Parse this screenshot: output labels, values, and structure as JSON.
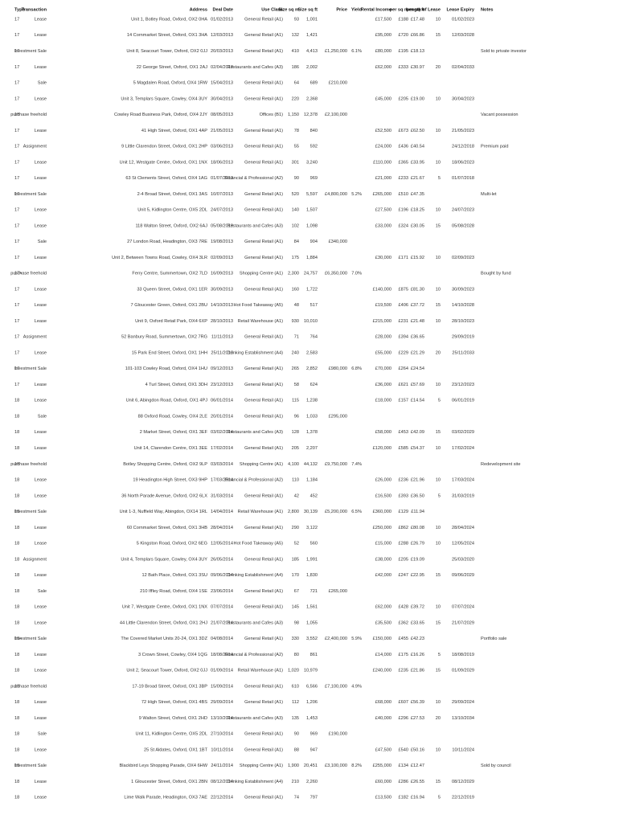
{
  "table": {
    "header": [
      "Type",
      "Transaction",
      "Address",
      "Deal Date",
      "Use Class",
      "Size sq m",
      "Size sq ft",
      "Price",
      "Yield",
      "Rental Income",
      "per sq m",
      "per sq ft",
      "Length of Lease",
      "Lease Expiry",
      "Notes"
    ],
    "rows": [
      [
        "17",
        "Lease",
        "Unit 1, Botley Road, Oxford, OX2 0HA",
        "01/02/2013",
        "General Retail (A1)",
        "93",
        "1,001",
        null,
        null,
        "£17,500",
        "£188",
        "£17.48",
        "10",
        "01/02/2023",
        null
      ],
      [
        "17",
        "Lease",
        "14 Cornmarket Street, Oxford, OX1 3HA",
        "12/03/2013",
        "General Retail (A1)",
        "132",
        "1,421",
        null,
        null,
        "£95,000",
        "£720",
        "£66.86",
        "15",
        "12/03/2028",
        null
      ],
      [
        "17",
        "Investment Sale",
        "Unit 8, Seacourt Tower, Oxford, OX2 0JJ",
        "20/03/2013",
        "General Retail (A1)",
        "410",
        "4,413",
        "£1,250,000",
        "6.1%",
        "£80,000",
        "£195",
        "£18.13",
        null,
        null,
        "Sold to private investor"
      ],
      [
        "17",
        "Lease",
        "22 George Street, Oxford, OX1 2AJ",
        "02/04/2013",
        "Restaurants and Cafes (A3)",
        "186",
        "2,002",
        null,
        null,
        "£62,000",
        "£333",
        "£30.97",
        "20",
        "02/04/2033",
        null
      ],
      [
        "17",
        "Sale",
        "5 Magdalen Road, Oxford, OX4 1RW",
        "15/04/2013",
        "General Retail (A1)",
        "64",
        "689",
        "£210,000",
        null,
        null,
        null,
        null,
        null,
        null,
        null
      ],
      [
        "17",
        "Lease",
        "Unit 3, Templars Square, Cowley, OX4 3UY",
        "30/04/2013",
        "General Retail (A1)",
        "220",
        "2,368",
        null,
        null,
        "£45,000",
        "£205",
        "£19.00",
        "10",
        "30/04/2023",
        null
      ],
      [
        "18",
        "purchase freehold",
        "Cowley Road Business Park, Oxford, OX4 2JY",
        "08/05/2013",
        "Offices (B1)",
        "1,150",
        "12,378",
        "£2,100,000",
        null,
        null,
        null,
        null,
        null,
        null,
        "Vacant possession"
      ],
      [
        "17",
        "Lease",
        "41 High Street, Oxford, OX1 4AP",
        "21/05/2013",
        "General Retail (A1)",
        "78",
        "840",
        null,
        null,
        "£52,500",
        "£673",
        "£62.50",
        "10",
        "21/05/2023",
        null
      ],
      [
        "17",
        "Assignment",
        "9 Little Clarendon Street, Oxford, OX1 2HP",
        "03/06/2013",
        "General Retail (A1)",
        "55",
        "592",
        null,
        null,
        "£24,000",
        "£436",
        "£40.54",
        null,
        "24/12/2018",
        "Premium paid"
      ],
      [
        "17",
        "Lease",
        "Unit 12, Westgate Centre, Oxford, OX1 1NX",
        "18/06/2013",
        "General Retail (A1)",
        "301",
        "3,240",
        null,
        null,
        "£110,000",
        "£365",
        "£33.95",
        "10",
        "18/06/2023",
        null
      ],
      [
        "17",
        "Lease",
        "63 St Clements Street, Oxford, OX4 1AG",
        "01/07/2013",
        "Financial & Professional (A2)",
        "90",
        "969",
        null,
        null,
        "£21,000",
        "£233",
        "£21.67",
        "5",
        "01/07/2018",
        null
      ],
      [
        "17",
        "Investment Sale",
        "2-4 Broad Street, Oxford, OX1 3AS",
        "10/07/2013",
        "General Retail (A1)",
        "520",
        "5,597",
        "£4,800,000",
        "5.2%",
        "£265,000",
        "£510",
        "£47.35",
        null,
        null,
        "Multi-let"
      ],
      [
        "17",
        "Lease",
        "Unit 5, Kidlington Centre, OX5 2DL",
        "24/07/2013",
        "General Retail (A1)",
        "140",
        "1,507",
        null,
        null,
        "£27,500",
        "£196",
        "£18.25",
        "10",
        "24/07/2023",
        null
      ],
      [
        "17",
        "Lease",
        "118 Walton Street, Oxford, OX2 6AJ",
        "05/08/2013",
        "Restaurants and Cafes (A3)",
        "102",
        "1,098",
        null,
        null,
        "£33,000",
        "£324",
        "£30.05",
        "15",
        "05/08/2028",
        null
      ],
      [
        "17",
        "Sale",
        "27 London Road, Headington, OX3 7RE",
        "19/08/2013",
        "General Retail (A1)",
        "84",
        "904",
        "£340,000",
        null,
        null,
        null,
        null,
        null,
        null,
        null
      ],
      [
        "17",
        "Lease",
        "Unit 2, Between Towns Road, Cowley, OX4 3LR",
        "02/09/2013",
        "General Retail (A1)",
        "175",
        "1,884",
        null,
        null,
        "£30,000",
        "£171",
        "£15.92",
        "10",
        "02/09/2023",
        null
      ],
      [
        "17+",
        "purchase freehold",
        "Ferry Centre, Summertown, OX2 7LD",
        "16/09/2013",
        "Shopping Centre (A1)",
        "2,300",
        "24,757",
        "£6,350,000",
        "7.0%",
        null,
        null,
        null,
        null,
        null,
        "Bought by fund"
      ],
      [
        "17",
        "Lease",
        "33 Queen Street, Oxford, OX1 1ER",
        "30/09/2013",
        "General Retail (A1)",
        "160",
        "1,722",
        null,
        null,
        "£140,000",
        "£875",
        "£81.30",
        "10",
        "30/09/2023",
        null
      ],
      [
        "17",
        "Lease",
        "7 Gloucester Green, Oxford, OX1 2BU",
        "14/10/2013",
        "Hot Food Takeaway (A5)",
        "48",
        "517",
        null,
        null,
        "£19,500",
        "£406",
        "£37.72",
        "15",
        "14/10/2028",
        null
      ],
      [
        "17",
        "Lease",
        "Unit 9, Oxford Retail Park, OX4 6XP",
        "28/10/2013",
        "Retail Warehouse (A1)",
        "930",
        "10,010",
        null,
        null,
        "£215,000",
        "£231",
        "£21.48",
        "10",
        "28/10/2023",
        null
      ],
      [
        "17",
        "Assignment",
        "52 Banbury Road, Summertown, OX2 7RG",
        "11/11/2013",
        "General Retail (A1)",
        "71",
        "764",
        null,
        null,
        "£28,000",
        "£394",
        "£36.65",
        null,
        "29/09/2019",
        null
      ],
      [
        "17",
        "Lease",
        "15 Park End Street, Oxford, OX1 1HH",
        "25/11/2013",
        "Drinking Establishment (A4)",
        "240",
        "2,583",
        null,
        null,
        "£55,000",
        "£229",
        "£21.29",
        "20",
        "25/11/2033",
        null
      ],
      [
        "17",
        "Investment Sale",
        "101-103 Cowley Road, Oxford, OX4 1HU",
        "09/12/2013",
        "General Retail (A1)",
        "265",
        "2,852",
        "£980,000",
        "6.8%",
        "£70,000",
        "£264",
        "£24.54",
        null,
        null,
        null
      ],
      [
        "17",
        "Lease",
        "4 Turl Street, Oxford, OX1 3DH",
        "23/12/2013",
        "General Retail (A1)",
        "58",
        "624",
        null,
        null,
        "£36,000",
        "£621",
        "£57.69",
        "10",
        "23/12/2023",
        null
      ],
      [
        "18",
        "Lease",
        "Unit 6, Abingdon Road, Oxford, OX1 4PJ",
        "06/01/2014",
        "General Retail (A1)",
        "115",
        "1,238",
        null,
        null,
        "£18,000",
        "£157",
        "£14.54",
        "5",
        "06/01/2019",
        null
      ],
      [
        "18",
        "Sale",
        "88 Oxford Road, Cowley, OX4 2LE",
        "20/01/2014",
        "General Retail (A1)",
        "96",
        "1,033",
        "£295,000",
        null,
        null,
        null,
        null,
        null,
        null,
        null
      ],
      [
        "18",
        "Lease",
        "2 Market Street, Oxford, OX1 3EF",
        "03/02/2014",
        "Restaurants and Cafes (A3)",
        "128",
        "1,378",
        null,
        null,
        "£58,000",
        "£453",
        "£42.09",
        "15",
        "03/02/2029",
        null
      ],
      [
        "18",
        "Lease",
        "Unit 14, Clarendon Centre, OX1 3EE",
        "17/02/2014",
        "General Retail (A1)",
        "205",
        "2,207",
        null,
        null,
        "£120,000",
        "£585",
        "£54.37",
        "10",
        "17/02/2024",
        null
      ],
      [
        "18",
        "purchase freehold",
        "Botley Shopping Centre, Oxford, OX2 9LP",
        "03/03/2014",
        "Shopping Centre (A1)",
        "4,100",
        "44,132",
        "£9,750,000",
        "7.4%",
        null,
        null,
        null,
        null,
        null,
        "Redevelopment site"
      ],
      [
        "18",
        "Lease",
        "19 Headington High Street, OX3 9HP",
        "17/03/2014",
        "Financial & Professional (A2)",
        "110",
        "1,184",
        null,
        null,
        "£26,000",
        "£236",
        "£21.96",
        "10",
        "17/03/2024",
        null
      ],
      [
        "18",
        "Lease",
        "36 North Parade Avenue, Oxford, OX2 6LX",
        "31/03/2014",
        "General Retail (A1)",
        "42",
        "452",
        null,
        null,
        "£16,500",
        "£393",
        "£36.50",
        "5",
        "31/03/2019",
        null
      ],
      [
        "18",
        "Investment Sale",
        "Unit 1-3, Nuffield Way, Abingdon, OX14 1RL",
        "14/04/2014",
        "Retail Warehouse (A1)",
        "2,800",
        "30,139",
        "£5,200,000",
        "6.5%",
        "£360,000",
        "£129",
        "£11.94",
        null,
        null,
        null
      ],
      [
        "18",
        "Lease",
        "60 Cornmarket Street, Oxford, OX1 3HB",
        "28/04/2014",
        "General Retail (A1)",
        "290",
        "3,122",
        null,
        null,
        "£250,000",
        "£862",
        "£80.08",
        "10",
        "28/04/2024",
        null
      ],
      [
        "18",
        "Lease",
        "5 Kingston Road, Oxford, OX2 6EG",
        "12/05/2014",
        "Hot Food Takeaway (A5)",
        "52",
        "560",
        null,
        null,
        "£15,000",
        "£288",
        "£26.79",
        "10",
        "12/05/2024",
        null
      ],
      [
        "18",
        "Assignment",
        "Unit 4, Templars Square, Cowley, OX4 3UY",
        "26/05/2014",
        "General Retail (A1)",
        "185",
        "1,991",
        null,
        null,
        "£38,000",
        "£205",
        "£19.09",
        null,
        "25/03/2020",
        null
      ],
      [
        "18",
        "Lease",
        "12 Bath Place, Oxford, OX1 3SU",
        "09/06/2014",
        "Drinking Establishment (A4)",
        "170",
        "1,830",
        null,
        null,
        "£42,000",
        "£247",
        "£22.95",
        "15",
        "09/06/2029",
        null
      ],
      [
        "18",
        "Sale",
        "210 Iffley Road, Oxford, OX4 1SE",
        "23/06/2014",
        "General Retail (A1)",
        "67",
        "721",
        "£265,000",
        null,
        null,
        null,
        null,
        null,
        null,
        null
      ],
      [
        "18",
        "Lease",
        "Unit 7, Westgate Centre, Oxford, OX1 1NX",
        "07/07/2014",
        "General Retail (A1)",
        "145",
        "1,561",
        null,
        null,
        "£62,000",
        "£428",
        "£39.72",
        "10",
        "07/07/2024",
        null
      ],
      [
        "18",
        "Lease",
        "44 Little Clarendon Street, Oxford, OX1 2HJ",
        "21/07/2014",
        "Restaurants and Cafes (A3)",
        "98",
        "1,055",
        null,
        null,
        "£35,500",
        "£362",
        "£33.65",
        "15",
        "21/07/2029",
        null
      ],
      [
        "18+",
        "Investment Sale",
        "The Covered Market Units 20-24, OX1 3DZ",
        "04/08/2014",
        "General Retail (A1)",
        "330",
        "3,552",
        "£2,400,000",
        "5.9%",
        "£150,000",
        "£455",
        "£42.23",
        null,
        null,
        "Portfolio sale"
      ],
      [
        "18",
        "Lease",
        "3 Crown Street, Cowley, OX4 1QG",
        "18/08/2014",
        "Financial & Professional (A2)",
        "80",
        "861",
        null,
        null,
        "£14,000",
        "£175",
        "£16.26",
        "5",
        "18/08/2019",
        null
      ],
      [
        "18",
        "Lease",
        "Unit 2, Seacourt Tower, Oxford, OX2 0JJ",
        "01/09/2014",
        "Retail Warehouse (A1)",
        "1,020",
        "10,979",
        null,
        null,
        "£240,000",
        "£235",
        "£21.86",
        "15",
        "01/09/2029",
        null
      ],
      [
        "18",
        "purchase freehold",
        "17-19 Broad Street, Oxford, OX1 3BP",
        "15/09/2014",
        "General Retail (A1)",
        "610",
        "6,566",
        "£7,100,000",
        "4.9%",
        null,
        null,
        null,
        null,
        null,
        null
      ],
      [
        "18",
        "Lease",
        "72 High Street, Oxford, OX1 4BS",
        "29/09/2014",
        "General Retail (A1)",
        "112",
        "1,206",
        null,
        null,
        "£68,000",
        "£607",
        "£56.39",
        "10",
        "29/09/2024",
        null
      ],
      [
        "18",
        "Lease",
        "9 Walton Street, Oxford, OX1 2HD",
        "13/10/2014",
        "Restaurants and Cafes (A3)",
        "135",
        "1,453",
        null,
        null,
        "£40,000",
        "£296",
        "£27.53",
        "20",
        "13/10/2034",
        null
      ],
      [
        "18",
        "Sale",
        "Unit 11, Kidlington Centre, OX5 2DL",
        "27/10/2014",
        "General Retail (A1)",
        "90",
        "969",
        "£190,000",
        null,
        null,
        null,
        null,
        null,
        null,
        null
      ],
      [
        "18",
        "Lease",
        "25 St Aldates, Oxford, OX1 1BT",
        "10/11/2014",
        "General Retail (A1)",
        "88",
        "947",
        null,
        null,
        "£47,500",
        "£540",
        "£50.16",
        "10",
        "10/11/2024",
        null
      ],
      [
        "18",
        "Investment Sale",
        "Blackbird Leys Shopping Parade, OX4 6HW",
        "24/11/2014",
        "Shopping Centre (A1)",
        "1,900",
        "20,451",
        "£3,100,000",
        "8.2%",
        "£255,000",
        "£134",
        "£12.47",
        null,
        null,
        "Sold by council"
      ],
      [
        "18",
        "Lease",
        "1 Gloucester Street, Oxford, OX1 2BN",
        "08/12/2014",
        "Drinking Establishment (A4)",
        "210",
        "2,260",
        null,
        null,
        "£60,000",
        "£286",
        "£26.55",
        "15",
        "08/12/2029",
        null
      ],
      [
        "18",
        "Lease",
        "Lime Walk Parade, Headington, OX3 7AE",
        "22/12/2014",
        "General Retail (A1)",
        "74",
        "797",
        null,
        null,
        "£13,500",
        "£182",
        "£16.94",
        "5",
        "22/12/2019",
        null
      ]
    ]
  }
}
